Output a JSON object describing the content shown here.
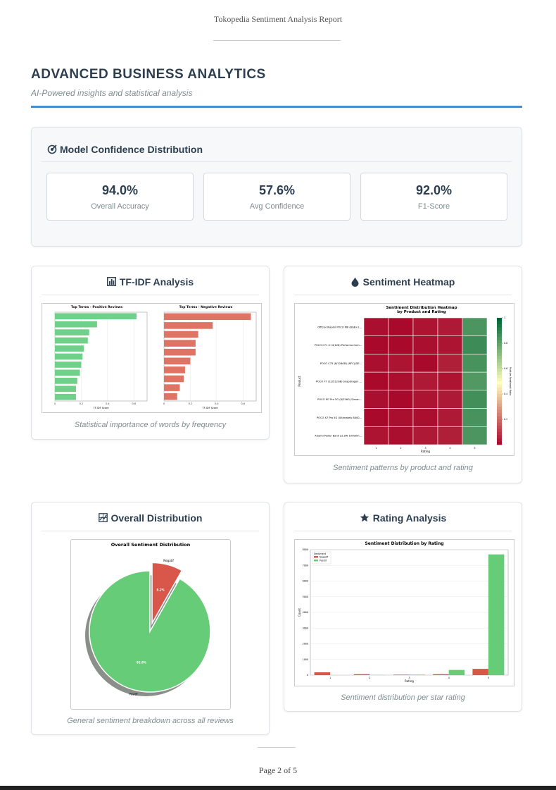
{
  "header": {
    "title": "Tokopedia Sentiment Analysis Report"
  },
  "section": {
    "title": "ADVANCED BUSINESS ANALYTICS",
    "subtitle": "AI-Powered insights and statistical analysis"
  },
  "confidence": {
    "title": "Model Confidence Distribution",
    "metrics": [
      {
        "value": "94.0%",
        "label": "Overall Accuracy"
      },
      {
        "value": "57.6%",
        "label": "Avg Confidence"
      },
      {
        "value": "92.0%",
        "label": "F1-Score"
      }
    ]
  },
  "tfidf": {
    "title": "TF-IDF Analysis",
    "caption": "Statistical importance of words by frequency",
    "charts": [
      {
        "type": "barh",
        "title": "Top Terms - Positive Reviews",
        "xlabel": "TF-IDF Score",
        "categories": [
          null,
          null,
          null,
          null,
          null,
          null,
          null,
          null,
          null,
          null,
          null
        ],
        "values": [
          0.62,
          0.32,
          0.26,
          0.25,
          0.22,
          0.21,
          0.2,
          0.19,
          0.17,
          0.16,
          0.16
        ],
        "color": "#6fd08a",
        "xlim": [
          0,
          0.7
        ],
        "xticks": [
          0,
          0.2,
          0.4,
          0.6
        ]
      },
      {
        "type": "barh",
        "title": "Top Terms - Negative Reviews",
        "xlabel": "TF-IDF Score",
        "categories": [
          null,
          null,
          null,
          null,
          null,
          null,
          null,
          null,
          null,
          null
        ],
        "values": [
          0.66,
          0.37,
          0.26,
          0.24,
          0.24,
          0.2,
          0.16,
          0.15,
          0.12,
          0.1
        ],
        "color": "#e07464",
        "xlim": [
          0,
          0.7
        ],
        "xticks": [
          0,
          0.2,
          0.4,
          0.6
        ]
      }
    ]
  },
  "heatmap": {
    "title": "Sentiment Heatmap",
    "caption": "Sentiment patterns by product and rating",
    "chart": {
      "type": "heatmap",
      "title": "Sentiment Distribution Heatmap",
      "subtitle": "by Product and Rating",
      "xlabel": "Rating",
      "ylabel": "Product",
      "colorbar_label": "Positive Sentiment Ratio",
      "categories": [
        "1",
        "2",
        "3",
        "4",
        "5"
      ],
      "rows": [
        "Official Xiaomi POCO M6 (8GB+2...",
        "POCO C71 4+4(128) Performa Cam...",
        "POCO C75 (8/128GB) (NFC)(DE...",
        "POCO F7 (12/512GB) Snapdragon ...",
        "POCO M7 Pro 5G (8/256G) Siman...",
        "POCO X7 Pro 5G (Ultimately 8400...",
        "Xiaomi Power Bank 22.5W 10000m..."
      ],
      "values": [
        [
          0.03,
          0.02,
          0.04,
          0.05,
          0.85
        ],
        [
          0.02,
          0.02,
          0.03,
          0.04,
          0.88
        ],
        [
          0.03,
          0.04,
          0.02,
          0.06,
          0.86
        ],
        [
          0.02,
          0.03,
          0.05,
          0.04,
          0.84
        ],
        [
          0.03,
          0.02,
          0.04,
          0.05,
          0.87
        ],
        [
          0.02,
          0.03,
          0.03,
          0.05,
          0.86
        ],
        [
          0.04,
          0.03,
          0.05,
          0.06,
          0.85
        ]
      ],
      "clim": [
        0,
        1
      ],
      "cticks": [
        0.2,
        0.4,
        0.6,
        0.8,
        1
      ]
    }
  },
  "distribution": {
    "title": "Overall Distribution",
    "caption": "General sentiment breakdown across all reviews",
    "chart": {
      "type": "pie",
      "title": "Overall Sentiment Distribution",
      "categories": [
        "Negatif",
        "Positif"
      ],
      "values": [
        8.2,
        91.8
      ],
      "value_labels": [
        "8.2%",
        "91.8%"
      ],
      "colors": [
        "#d9574a",
        "#66cc77"
      ]
    }
  },
  "rating": {
    "title": "Rating Analysis",
    "caption": "Sentiment distribution per star rating",
    "chart": {
      "type": "bar",
      "title": "Sentiment Distribution by Rating",
      "xlabel": "Rating",
      "ylabel": "Count",
      "legend_title": "Sentiment",
      "categories": [
        "1",
        "2",
        "3",
        "4",
        "5"
      ],
      "series": [
        {
          "name": "Negatif",
          "color": "#d9574a",
          "values": [
            180,
            60,
            30,
            60,
            400
          ]
        },
        {
          "name": "Positif",
          "color": "#66cc77",
          "values": [
            0,
            10,
            30,
            330,
            7700
          ]
        }
      ],
      "ylim": [
        0,
        8000
      ],
      "yticks": [
        0,
        1000,
        2000,
        3000,
        4000,
        5000,
        6000,
        7000,
        8000
      ],
      "grid": true
    }
  },
  "footer": {
    "page": "Page 2 of 5"
  }
}
